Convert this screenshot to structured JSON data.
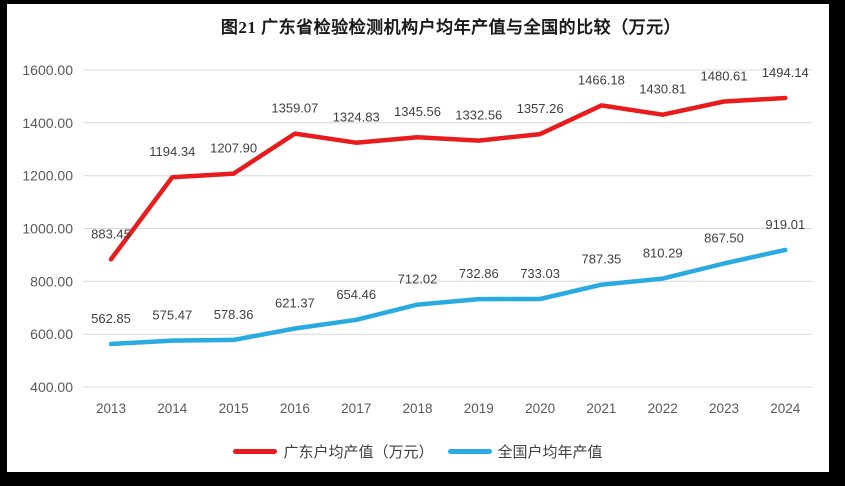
{
  "frame": {
    "outer_background": "#000000",
    "inner_background": "#ffffff"
  },
  "chart_data": {
    "type": "line",
    "title": "图21  广东省检验检测机构户均年产值与全国的比较（万元）",
    "xlabel": "",
    "ylabel": "",
    "categories": [
      "2013",
      "2014",
      "2015",
      "2016",
      "2017",
      "2018",
      "2019",
      "2020",
      "2021",
      "2022",
      "2023",
      "2024"
    ],
    "series": [
      {
        "id": "guangdong",
        "name": "广东户均产值（万元）",
        "color": "#e81b1d",
        "values": [
          883.45,
          1194.34,
          1207.9,
          1359.07,
          1324.83,
          1345.56,
          1332.56,
          1357.26,
          1466.18,
          1430.81,
          1480.61,
          1494.14
        ]
      },
      {
        "id": "national",
        "name": "全国户均年产值",
        "color": "#29abe2",
        "values": [
          562.85,
          575.47,
          578.36,
          621.37,
          654.46,
          712.02,
          732.86,
          733.03,
          787.35,
          810.29,
          867.5,
          919.01
        ]
      }
    ],
    "ylim": [
      400,
      1600
    ],
    "yticks": [
      400,
      600,
      800,
      1000,
      1200,
      1400,
      1600
    ],
    "grid": true,
    "legend_position": "bottom",
    "colors": {
      "gridline": "#d9d9d9",
      "axis_labels": "#595959",
      "data_labels": "#404040",
      "title": "#1a1a1a"
    }
  }
}
